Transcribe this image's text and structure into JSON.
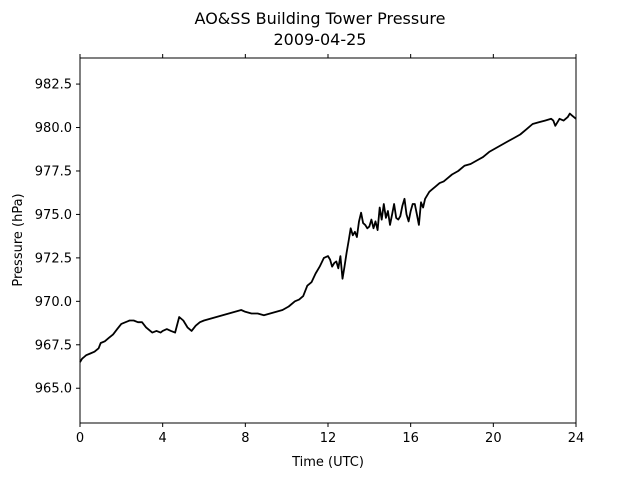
{
  "chart_data": {
    "type": "line",
    "title": "AO&SS Building Tower Pressure",
    "subtitle": "2009-04-25",
    "xlabel": "Time (UTC)",
    "ylabel": "Pressure (hPa)",
    "xlim": [
      0,
      24
    ],
    "ylim": [
      963.0,
      984.0
    ],
    "x_ticks": [
      0,
      4,
      8,
      12,
      16,
      20,
      24
    ],
    "x_tick_labels": [
      "0",
      "4",
      "8",
      "12",
      "16",
      "20",
      "24"
    ],
    "y_ticks": [
      965.0,
      967.5,
      970.0,
      972.5,
      975.0,
      977.5,
      980.0,
      982.5
    ],
    "y_tick_labels": [
      "965.0",
      "967.5",
      "970.0",
      "972.5",
      "975.0",
      "977.5",
      "980.0",
      "982.5"
    ],
    "grid": false,
    "line_color": "#000000",
    "series": [
      {
        "x": [
          0.0,
          0.1,
          0.2,
          0.3,
          0.5,
          0.7,
          0.9,
          1.0,
          1.2,
          1.4,
          1.6,
          1.8,
          2.0,
          2.2,
          2.4,
          2.6,
          2.8,
          3.0,
          3.2,
          3.4,
          3.5,
          3.7,
          3.9,
          4.0,
          4.2,
          4.4,
          4.6,
          4.8,
          5.0,
          5.2,
          5.4,
          5.6,
          5.8,
          6.0,
          6.3,
          6.6,
          6.9,
          7.2,
          7.5,
          7.8,
          8.0,
          8.3,
          8.6,
          8.9,
          9.2,
          9.5,
          9.8,
          10.1,
          10.4,
          10.6,
          10.8,
          11.0,
          11.2,
          11.4,
          11.6,
          11.8,
          12.0,
          12.1,
          12.2,
          12.3,
          12.4,
          12.5,
          12.6,
          12.7,
          12.8,
          12.9,
          13.0,
          13.1,
          13.2,
          13.3,
          13.4,
          13.5,
          13.6,
          13.7,
          13.8,
          13.9,
          14.0,
          14.1,
          14.2,
          14.3,
          14.4,
          14.5,
          14.6,
          14.7,
          14.8,
          14.9,
          15.0,
          15.1,
          15.2,
          15.3,
          15.4,
          15.5,
          15.6,
          15.7,
          15.8,
          15.9,
          16.0,
          16.1,
          16.2,
          16.3,
          16.4,
          16.5,
          16.6,
          16.7,
          16.8,
          16.9,
          17.0,
          17.2,
          17.4,
          17.6,
          17.8,
          18.0,
          18.3,
          18.6,
          18.9,
          19.2,
          19.5,
          19.8,
          20.1,
          20.4,
          20.7,
          21.0,
          21.3,
          21.6,
          21.9,
          22.2,
          22.5,
          22.8,
          22.9,
          23.0,
          23.2,
          23.4,
          23.6,
          23.7,
          23.8,
          24.0
        ],
        "values": [
          966.5,
          966.7,
          966.8,
          966.9,
          967.0,
          967.1,
          967.3,
          967.6,
          967.7,
          967.9,
          968.1,
          968.4,
          968.7,
          968.8,
          968.9,
          968.9,
          968.8,
          968.8,
          968.5,
          968.3,
          968.2,
          968.3,
          968.2,
          968.3,
          968.4,
          968.3,
          968.2,
          969.1,
          968.9,
          968.5,
          968.3,
          968.6,
          968.8,
          968.9,
          969.0,
          969.1,
          969.2,
          969.3,
          969.4,
          969.5,
          969.4,
          969.3,
          969.3,
          969.2,
          969.3,
          969.4,
          969.5,
          969.7,
          970.0,
          970.1,
          970.3,
          970.9,
          971.1,
          971.6,
          972.0,
          972.5,
          972.6,
          972.4,
          972.0,
          972.2,
          972.3,
          971.9,
          972.6,
          971.3,
          972.0,
          972.8,
          973.5,
          974.2,
          973.8,
          974.0,
          973.7,
          974.6,
          975.1,
          974.5,
          974.4,
          974.2,
          974.3,
          974.7,
          974.2,
          974.6,
          974.1,
          975.4,
          974.7,
          975.6,
          974.8,
          975.2,
          974.4,
          975.0,
          975.6,
          974.8,
          974.7,
          974.9,
          975.5,
          975.9,
          975.0,
          974.6,
          975.2,
          975.6,
          975.6,
          975.0,
          974.4,
          975.7,
          975.4,
          975.9,
          976.1,
          976.3,
          976.4,
          976.6,
          976.8,
          976.9,
          977.1,
          977.3,
          977.5,
          977.8,
          977.9,
          978.1,
          978.3,
          978.6,
          978.8,
          979.0,
          979.2,
          979.4,
          979.6,
          979.9,
          980.2,
          980.3,
          980.4,
          980.5,
          980.4,
          980.1,
          980.5,
          980.4,
          980.6,
          980.8,
          980.7,
          980.5
        ]
      }
    ]
  }
}
